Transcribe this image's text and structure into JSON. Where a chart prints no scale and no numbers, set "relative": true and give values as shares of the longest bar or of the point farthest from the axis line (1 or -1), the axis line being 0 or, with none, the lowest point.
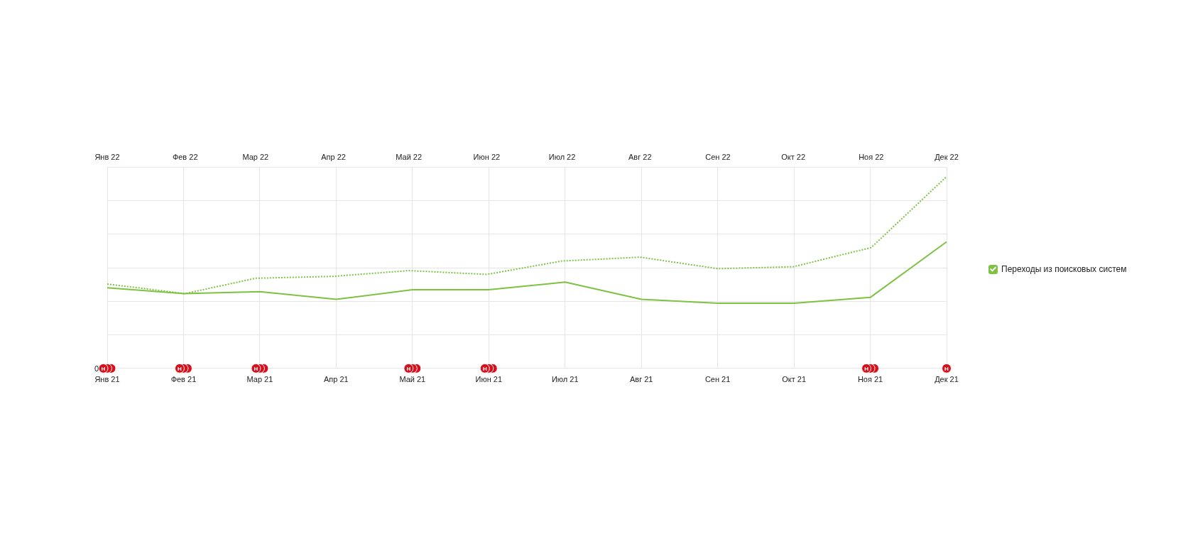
{
  "chart_data": {
    "type": "line",
    "relative": true,
    "categories": [
      "Янв 21",
      "Фев 21",
      "Мар 21",
      "Апр 21",
      "Май 21",
      "Июн 21",
      "Июл 21",
      "Авг 21",
      "Сен 21",
      "Окт 21",
      "Ноя 21",
      "Дек 21"
    ],
    "x2lim": [
      "2022-01",
      "2022-12"
    ],
    "x2ticks": [
      {
        "value": "2022-01",
        "label": "Янв 22"
      },
      {
        "value": "2022-02",
        "label": "Фев 22"
      },
      {
        "value": "2022-03",
        "label": "Мар 22"
      },
      {
        "value": "2022-04",
        "label": "Апр 22"
      },
      {
        "value": "2022-05",
        "label": "Май 22"
      },
      {
        "value": "2022-06",
        "label": "Июн 22"
      },
      {
        "value": "2022-07",
        "label": "Июл 22"
      },
      {
        "value": "2022-08",
        "label": "Авг 22"
      },
      {
        "value": "2022-09",
        "label": "Сен 22"
      },
      {
        "value": "2022-10",
        "label": "Окт 22"
      },
      {
        "value": "2022-11",
        "label": "Ноя 22"
      },
      {
        "value": "2022-12",
        "label": "Дек 22"
      }
    ],
    "series": [
      {
        "name": "Переходы из поисковых систем",
        "color": "#7dc242",
        "values": [
          0.42,
          0.39,
          0.4,
          0.36,
          0.41,
          0.41,
          0.45,
          0.36,
          0.34,
          0.34,
          0.37,
          0.66
        ]
      },
      {
        "color": "#7dc242",
        "axis": "x2",
        "line_style": "dotted",
        "x": [
          "2022-01",
          "2022-02",
          "2022-03",
          "2022-04",
          "2022-05",
          "2022-06",
          "2022-07",
          "2022-08",
          "2022-09",
          "2022-10",
          "2022-11",
          "2022-12"
        ],
        "values": [
          0.44,
          0.39,
          0.47,
          0.48,
          0.51,
          0.49,
          0.56,
          0.58,
          0.52,
          0.53,
          0.63,
          1
        ]
      },
      {
        "type": "scatter",
        "color": "#d8101c",
        "marker": "circle",
        "x": [
          "Янв 21",
          "Янв 21",
          "Янв 21",
          "Фев 21",
          "Фев 21",
          "Фев 21",
          "Мар 21",
          "Мар 21",
          "Мар 21",
          "Май 21",
          "Май 21",
          "Май 21",
          "Июн 21",
          "Июн 21",
          "Июн 21",
          "Ноя 21",
          "Ноя 21",
          "Ноя 21",
          "Дек 21"
        ],
        "values": [
          0,
          0,
          0,
          0,
          0,
          0,
          0,
          0,
          0,
          0,
          0,
          0,
          0,
          0,
          0,
          0,
          0,
          0,
          0
        ]
      }
    ],
    "grid": true,
    "legend": "right",
    "annotations": [
      "0",
      {
        "text": "Н",
        "x": "Янв 21",
        "y": 0
      },
      {
        "text": "Н",
        "x": "Фев 21",
        "y": 0
      },
      {
        "text": "Н",
        "x": "Мар 21",
        "y": 0
      },
      {
        "text": "Н",
        "x": "Май 21",
        "y": 0
      },
      {
        "text": "Н",
        "x": "Июн 21",
        "y": 0
      },
      {
        "text": "Н",
        "x": "Ноя 21",
        "y": 0
      },
      {
        "text": "Н",
        "x": "Дек 21",
        "y": 0
      }
    ]
  }
}
